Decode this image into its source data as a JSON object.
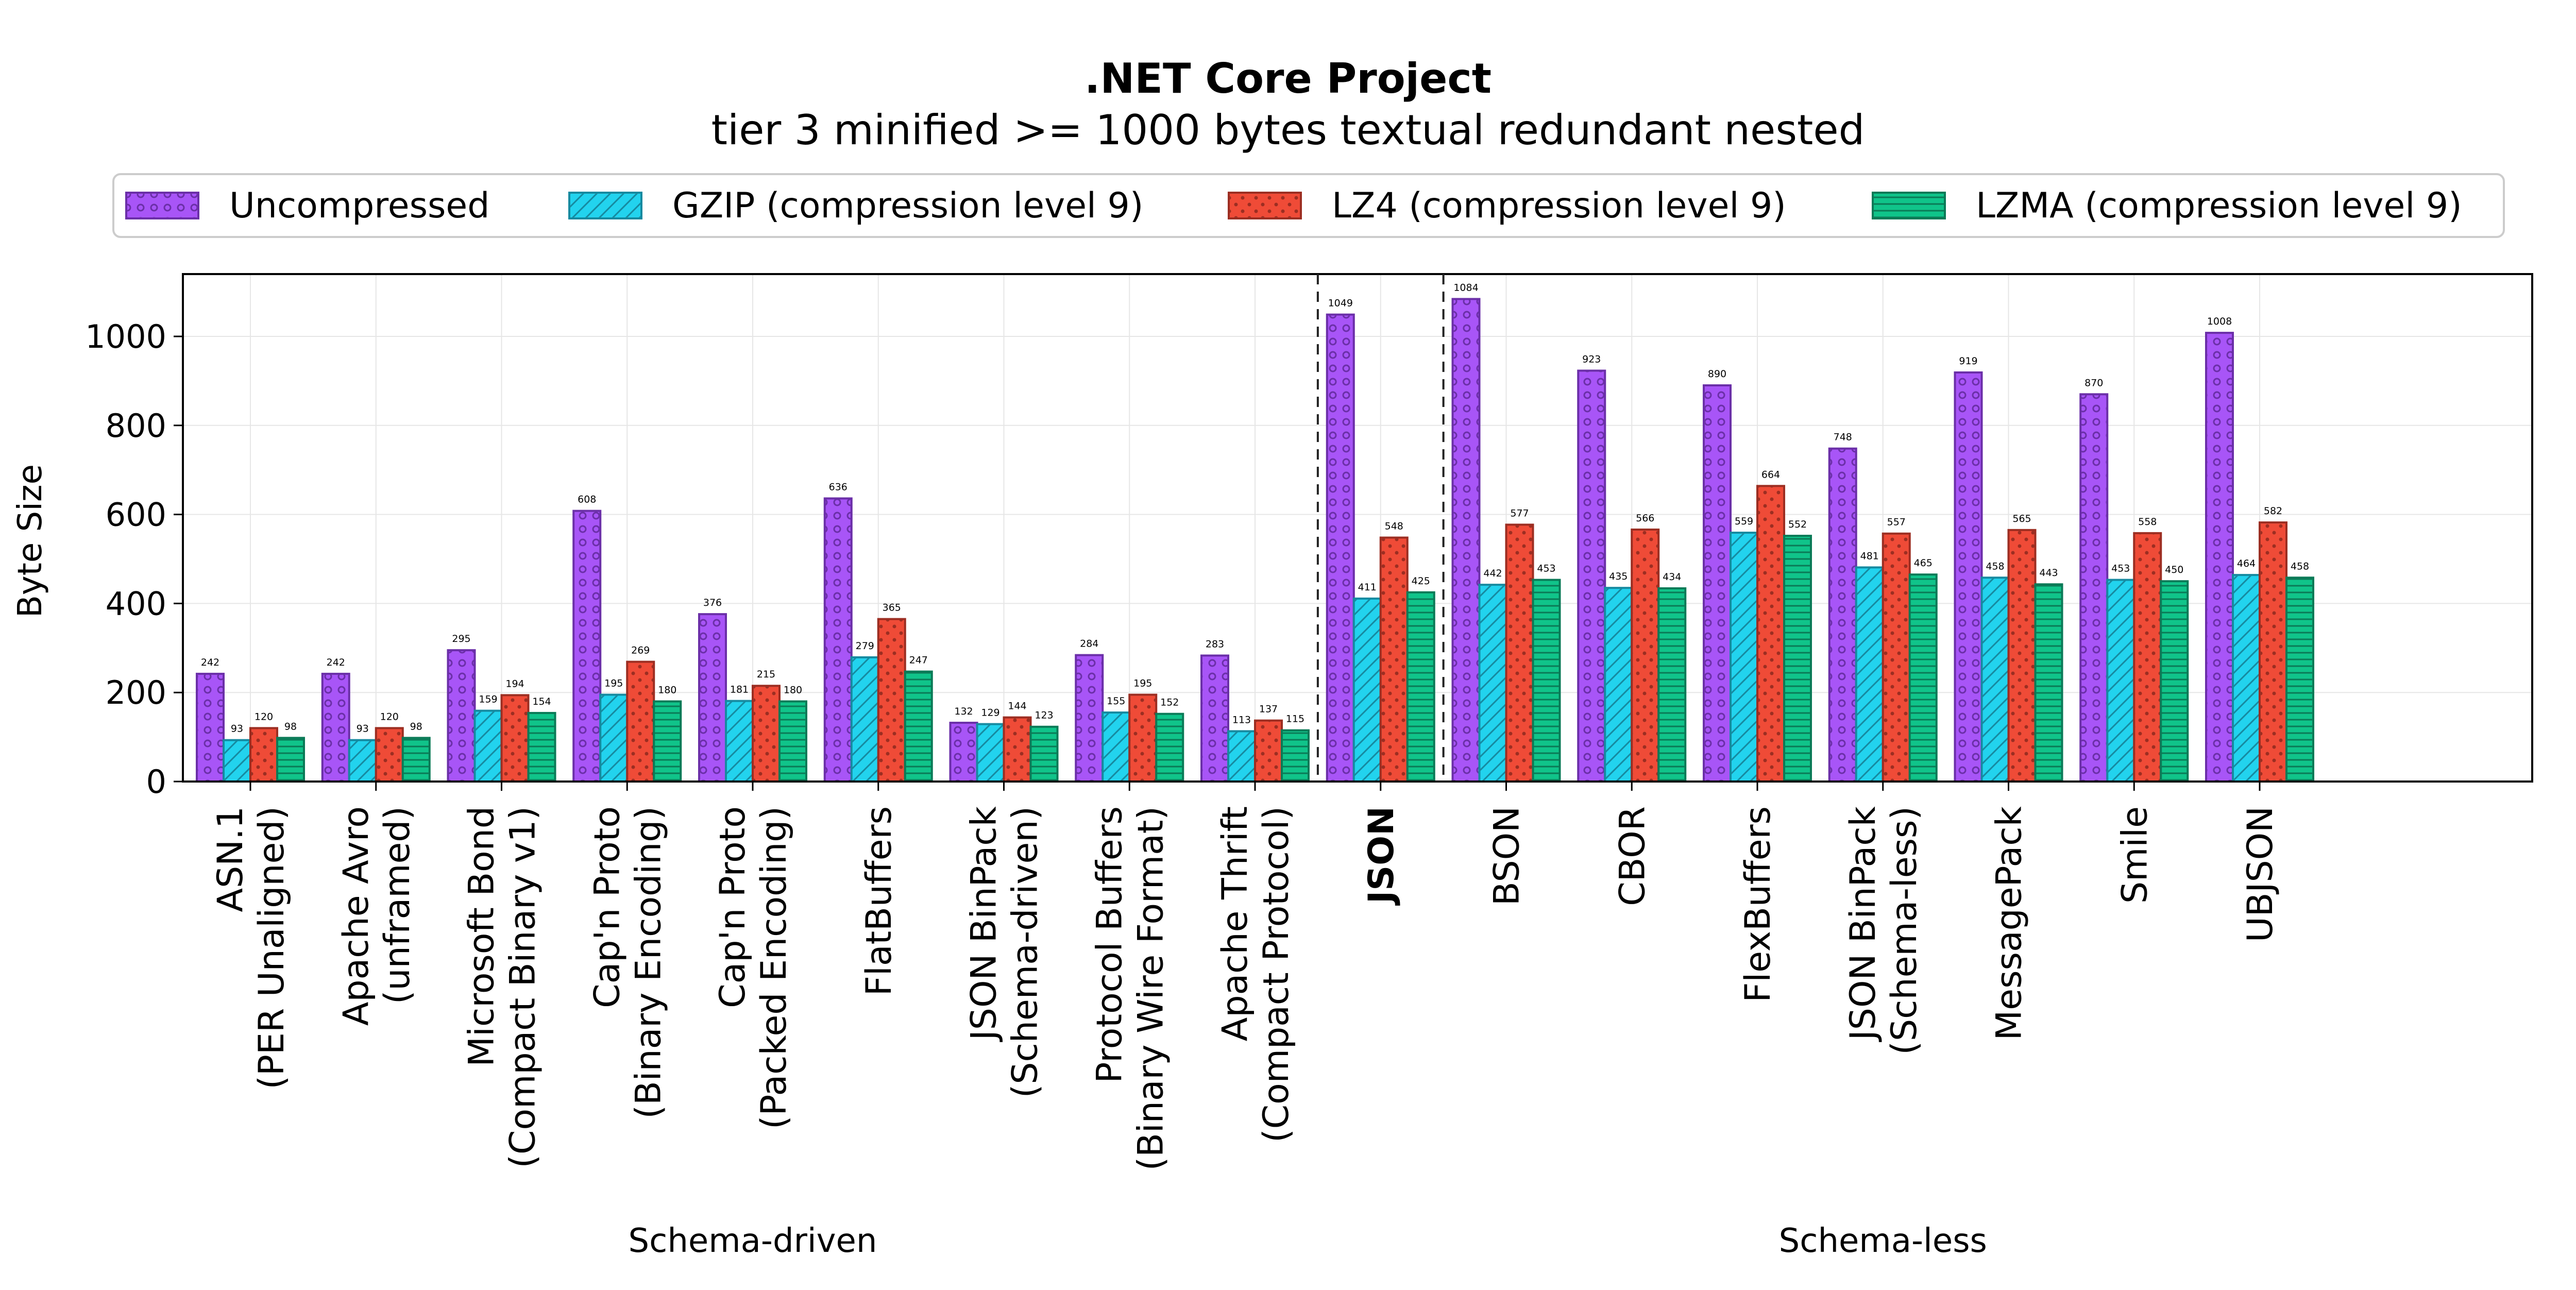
{
  "chart_data": {
    "type": "bar",
    "title": ".NET Core Project",
    "subtitle": "tier 3 minified >= 1000 bytes textual redundant nested",
    "ylabel": "Byte Size",
    "xlabel": "",
    "ylim": [
      0,
      1140
    ],
    "yticks": [
      0,
      200,
      400,
      600,
      800,
      1000
    ],
    "grid": true,
    "legend_position": "top",
    "categories": [
      {
        "lines": [
          "ASN.1",
          "(PER Unaligned)"
        ],
        "bold": false
      },
      {
        "lines": [
          "Apache Avro",
          "(unframed)"
        ],
        "bold": false
      },
      {
        "lines": [
          "Microsoft Bond",
          "(Compact Binary v1)"
        ],
        "bold": false
      },
      {
        "lines": [
          "Cap'n Proto",
          "(Binary Encoding)"
        ],
        "bold": false
      },
      {
        "lines": [
          "Cap'n Proto",
          "(Packed Encoding)"
        ],
        "bold": false
      },
      {
        "lines": [
          "FlatBuffers"
        ],
        "bold": false
      },
      {
        "lines": [
          "JSON BinPack",
          "(Schema-driven)"
        ],
        "bold": false
      },
      {
        "lines": [
          "Protocol Buffers",
          "(Binary Wire Format)"
        ],
        "bold": false
      },
      {
        "lines": [
          "Apache Thrift",
          "(Compact Protocol)"
        ],
        "bold": false
      },
      {
        "lines": [
          "JSON"
        ],
        "bold": true
      },
      {
        "lines": [
          "BSON"
        ],
        "bold": false
      },
      {
        "lines": [
          "CBOR"
        ],
        "bold": false
      },
      {
        "lines": [
          "FlexBuffers"
        ],
        "bold": false
      },
      {
        "lines": [
          "JSON BinPack",
          "(Schema-less)"
        ],
        "bold": false
      },
      {
        "lines": [
          "MessagePack"
        ],
        "bold": false
      },
      {
        "lines": [
          "Smile"
        ],
        "bold": false
      },
      {
        "lines": [
          "UBJSON"
        ],
        "bold": false
      }
    ],
    "series": [
      {
        "name": "Uncompressed",
        "color": "#a855f7",
        "edge": "#6b2fa8",
        "pattern": "circles",
        "values": [
          242,
          242,
          295,
          608,
          376,
          636,
          132,
          284,
          283,
          1049,
          1084,
          923,
          890,
          748,
          919,
          870,
          1008
        ]
      },
      {
        "name": "GZIP (compression level 9)",
        "color": "#22d3ee",
        "edge": "#168aa0",
        "pattern": "diagonal",
        "values": [
          93,
          93,
          159,
          195,
          181,
          279,
          129,
          155,
          113,
          411,
          442,
          435,
          559,
          481,
          458,
          453,
          464
        ]
      },
      {
        "name": "LZ4 (compression level 9)",
        "color": "#ef4b37",
        "edge": "#9c2e22",
        "pattern": "dots",
        "values": [
          120,
          120,
          194,
          269,
          215,
          365,
          144,
          195,
          137,
          548,
          577,
          566,
          664,
          557,
          565,
          558,
          582
        ]
      },
      {
        "name": "LZMA (compression level 9)",
        "color": "#10c48a",
        "edge": "#0b7a57",
        "pattern": "horizontal",
        "values": [
          98,
          98,
          154,
          180,
          180,
          247,
          123,
          152,
          115,
          425,
          453,
          434,
          552,
          465,
          443,
          450,
          458
        ]
      }
    ],
    "groups": [
      {
        "label": "Schema-driven",
        "start": 0,
        "end": 8
      },
      {
        "label": "Schema-less",
        "start": 10,
        "end": 16
      }
    ],
    "separators_after": [
      8,
      9
    ]
  }
}
